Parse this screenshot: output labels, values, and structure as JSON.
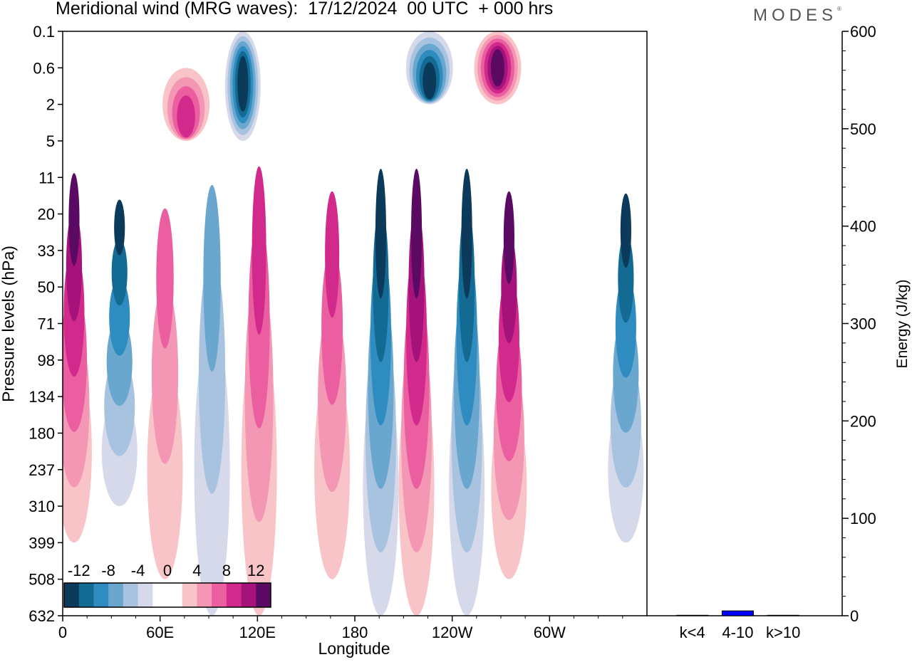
{
  "title": "Meridional wind (MRG waves):  17/12/2024  00 UTC  + 000 hrs",
  "brand": "MODES",
  "brand_mark": "®",
  "chart_data": [
    {
      "type": "heatmap",
      "title": "Meridional wind (MRG waves):  17/12/2024  00 UTC  + 000 hrs",
      "xlabel": "Longitude",
      "ylabel": "Pressure levels (hPa)",
      "x_ticks": [
        "0",
        "60E",
        "120E",
        "180",
        "120W",
        "60W"
      ],
      "x_tick_values": [
        0,
        60,
        120,
        180,
        240,
        300
      ],
      "xlim": [
        0,
        360
      ],
      "y_ticks": [
        "0.1",
        "0.6",
        "2",
        "5",
        "11",
        "20",
        "33",
        "50",
        "71",
        "98",
        "134",
        "180",
        "237",
        "310",
        "399",
        "508",
        "632"
      ],
      "colorbar_labels": [
        "-12",
        "-8",
        "-4",
        "0",
        "4",
        "8",
        "12"
      ],
      "colorbar_colors": [
        "#0b3a5a",
        "#136b94",
        "#2f8cc0",
        "#6aa7cf",
        "#a7c3df",
        "#d5d9ea",
        "#ffffff",
        "#ffffff",
        "#f9c4c7",
        "#f497b4",
        "#eb5fa1",
        "#d12a8c",
        "#a5137a",
        "#5a0a63"
      ],
      "features": [
        {
          "lon": 7,
          "level": 10,
          "top": 98,
          "bottom": 399,
          "value": 12
        },
        {
          "lon": 35,
          "level": 12,
          "top": 134,
          "bottom": 310,
          "value": -12
        },
        {
          "lon": 63,
          "level": 12,
          "top": 98,
          "bottom": 508,
          "value": 6
        },
        {
          "lon": 92,
          "level": 12,
          "top": 71,
          "bottom": 632,
          "value": -6
        },
        {
          "lon": 121,
          "level": 11,
          "top": 71,
          "bottom": 632,
          "value": 8
        },
        {
          "lon": 166,
          "level": 12,
          "top": 98,
          "bottom": 508,
          "value": 8
        },
        {
          "lon": 196,
          "level": 12,
          "top": 98,
          "bottom": 632,
          "value": -12
        },
        {
          "lon": 218,
          "level": 12,
          "top": 98,
          "bottom": 632,
          "value": 12
        },
        {
          "lon": 249,
          "level": 12,
          "top": 98,
          "bottom": 632,
          "value": -12
        },
        {
          "lon": 275,
          "level": 13,
          "top": 134,
          "bottom": 508,
          "value": 12
        },
        {
          "lon": 347,
          "level": 12,
          "top": 134,
          "bottom": 399,
          "value": -12
        },
        {
          "lon": 111,
          "level": 1,
          "top": 0.1,
          "bottom": 5,
          "value": -12
        },
        {
          "lon": 226,
          "level": 1,
          "top": 0.1,
          "bottom": 2,
          "value": -12
        },
        {
          "lon": 268,
          "level": 0.6,
          "top": 0.1,
          "bottom": 2,
          "value": 12
        },
        {
          "lon": 76,
          "level": 3,
          "top": 0.6,
          "bottom": 5,
          "value": 8
        }
      ]
    },
    {
      "type": "bar",
      "ylabel": "Energy (J/kg)",
      "categories": [
        "k<4",
        "4-10",
        "k>10"
      ],
      "values": [
        0.5,
        5,
        0.5
      ],
      "ylim": [
        0,
        600
      ],
      "y_ticks": [
        "0",
        "100",
        "200",
        "300",
        "400",
        "500",
        "600"
      ],
      "bar_color": "#0000ff"
    }
  ]
}
